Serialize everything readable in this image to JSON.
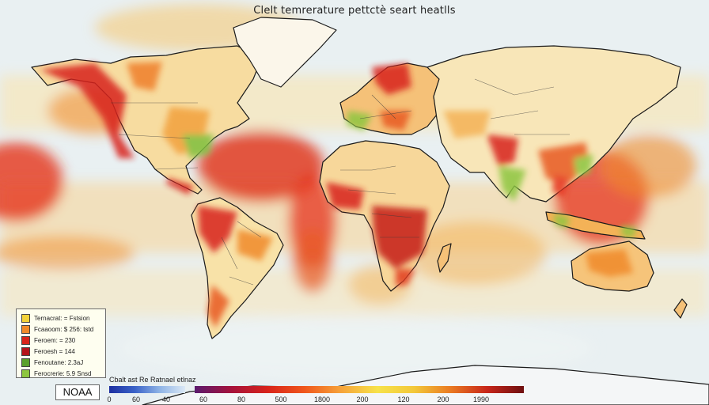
{
  "map": {
    "title": "Clelt temrerature pettctè seart heatlls",
    "ocean_color": "#e9f0f2",
    "land_base_color": "#f8e7b0",
    "hot_color": "#d8231a",
    "warm_color": "#f08a2a",
    "cool_color": "#8dc63f"
  },
  "legend": {
    "items": [
      {
        "label": "Ternacrat: = Fstsion",
        "color": "#f3d23a"
      },
      {
        "label": "Fcaaoom: $ 256: tstd",
        "color": "#f08a2a"
      },
      {
        "label": "Feroem: = 230",
        "color": "#d8231a"
      },
      {
        "label": "Feroesh = 144",
        "color": "#b5121b"
      },
      {
        "label": "Fenoutane: 2.3aJ",
        "color": "#5aa02c"
      },
      {
        "label": "Ferocrerie: 5.9 Snsd",
        "color": "#8dc63f"
      }
    ]
  },
  "source": {
    "label": "NOAA"
  },
  "scale": {
    "title": "Cbalt ast Re Ratnael etlnaz",
    "ticks": [
      "0",
      "60",
      "40",
      "60",
      "80",
      "500",
      "1800",
      "200",
      "120",
      "200",
      "1990"
    ]
  }
}
